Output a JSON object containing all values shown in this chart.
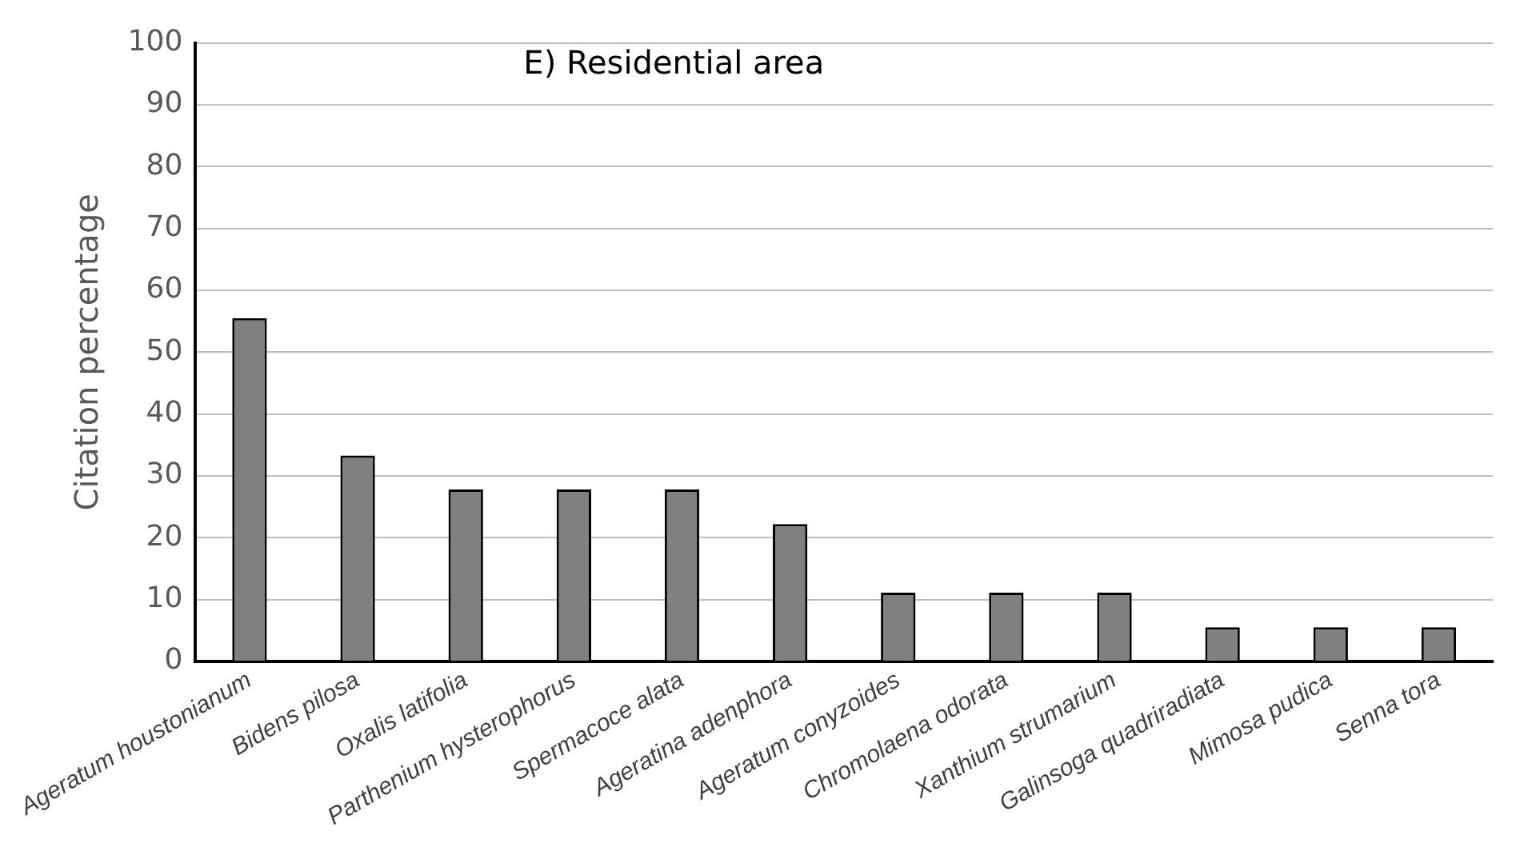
{
  "chart_data": {
    "type": "bar",
    "title": "E) Residential area",
    "ylabel": "Citation percentage",
    "categories": [
      "Ageratum houstonianum",
      "Bidens pilosa",
      "Oxalis latifolia",
      "Parthenium hysterophorus",
      "Spermacoce alata",
      "Ageratina adenphora",
      "Ageratum conyzoides",
      "Chromolaena odorata",
      "Xanthium strumarium",
      "Galinsoga quadriradiata",
      "Mimosa pudica",
      "Senna tora"
    ],
    "values": [
      55.5,
      33.3,
      27.8,
      27.8,
      27.8,
      22.2,
      11.1,
      11.1,
      11.1,
      5.5,
      5.5,
      5.5
    ],
    "color": "#808080",
    "ylim": [
      0,
      100
    ],
    "yticks": [
      0,
      10,
      20,
      30,
      40,
      50,
      60,
      70,
      80,
      90,
      100
    ],
    "grid": "y",
    "legend": false
  }
}
